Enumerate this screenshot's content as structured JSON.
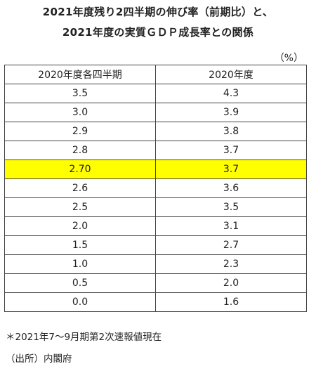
{
  "title_line1": "2021年度残り2四半期の伸び率（前期比）と、",
  "title_line2": "2021年度の実質ＧＤＰ成長率との関係",
  "unit": "（%）",
  "table": {
    "headers": [
      "2020年度各四半期",
      "2020年度"
    ],
    "rows": [
      [
        "3.5",
        "4.3"
      ],
      [
        "3.0",
        "3.9"
      ],
      [
        "2.9",
        "3.8"
      ],
      [
        "2.8",
        "3.7"
      ],
      [
        "2.70",
        "3.7"
      ],
      [
        "2.6",
        "3.6"
      ],
      [
        "2.5",
        "3.5"
      ],
      [
        "2.0",
        "3.1"
      ],
      [
        "1.5",
        "2.7"
      ],
      [
        "1.0",
        "2.3"
      ],
      [
        "0.5",
        "2.0"
      ],
      [
        "0.0",
        "1.6"
      ]
    ],
    "highlight_row": "2.70",
    "highlight_color": "#ffff00"
  },
  "note": "＊2021年7～9月期第2次速報値現在",
  "source": "（出所）内閣府"
}
